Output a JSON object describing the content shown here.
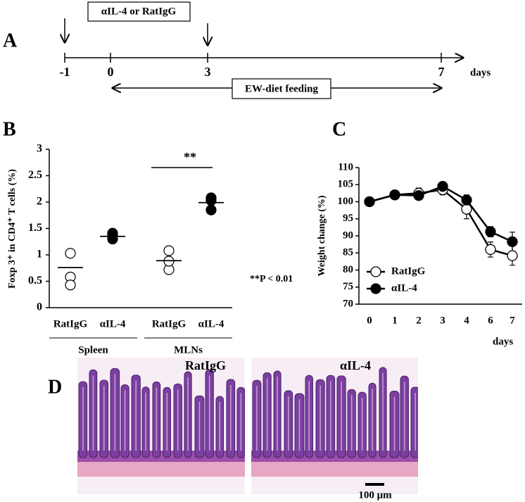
{
  "panel_labels": [
    "A",
    "B",
    "C",
    "D"
  ],
  "timeline": {
    "treatment_label": "αIL-4 or RatIgG",
    "ticks": [
      "-1",
      "0",
      "3",
      "7"
    ],
    "unit": "days",
    "feeding_label": "EW-diet feeding"
  },
  "chart_data": [
    {
      "type": "dotplot",
      "y_label": "Foxp 3⁺ in CD4⁺ T cells (%)",
      "categories": [
        "RatIgG",
        "αIL-4",
        "RatIgG",
        "αIL-4"
      ],
      "groups": [
        "Spleen",
        "MLNs"
      ],
      "fills": [
        "white",
        "black",
        "white",
        "black"
      ],
      "points": [
        [
          1.03,
          0.58,
          0.43
        ],
        [
          1.41,
          1.3,
          1.37
        ],
        [
          1.08,
          0.72,
          0.88
        ],
        [
          2.08,
          1.85,
          2.03
        ]
      ],
      "means": [
        0.76,
        1.35,
        0.89,
        1.99
      ],
      "ylim": [
        0,
        3
      ],
      "yticks": [
        0,
        0.5,
        1,
        1.5,
        2,
        2.5,
        3
      ],
      "significance": "**",
      "p_note": "**P < 0.01"
    },
    {
      "type": "line",
      "y_label": "Weight change (%)",
      "x_label": "days",
      "categories": [
        0,
        1,
        2,
        3,
        4,
        6,
        7
      ],
      "series": [
        {
          "name": "RatIgG",
          "fill": "white",
          "values": [
            100,
            102,
            102.5,
            103.5,
            97.8,
            86,
            84.2
          ],
          "errors": [
            0.3,
            0.5,
            1.5,
            1.5,
            2.8,
            2.2,
            2.8
          ]
        },
        {
          "name": "αIL-4",
          "fill": "black",
          "values": [
            100,
            102,
            101.8,
            104.5,
            100.5,
            91.2,
            88.3
          ],
          "errors": [
            0.3,
            0.3,
            0.6,
            0.6,
            1.5,
            1.5,
            2.8
          ]
        }
      ],
      "ylim": [
        70,
        110
      ],
      "yticks": [
        70,
        75,
        80,
        85,
        90,
        95,
        100,
        105,
        110
      ]
    }
  ],
  "images": {
    "left_label": "RatIgG",
    "right_label": "αIL-4",
    "scale_bar": "100 μm"
  }
}
